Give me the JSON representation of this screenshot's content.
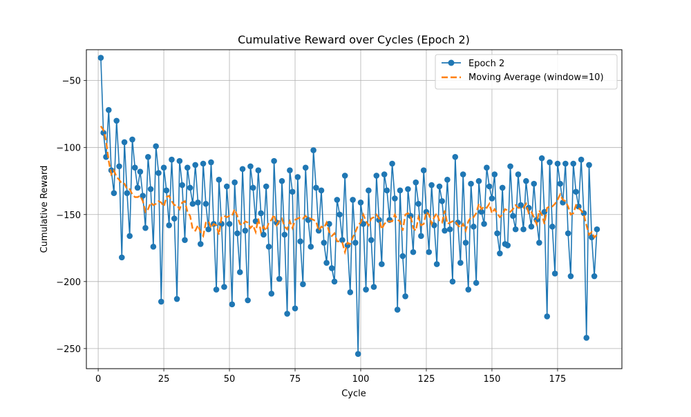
{
  "chart_data": {
    "type": "line",
    "title": "Cumulative Reward over Cycles (Epoch 2)",
    "xlabel": "Cycle",
    "ylabel": "Cumulative Reward",
    "xlim": [
      -4.5,
      199.5
    ],
    "ylim": [
      -265,
      -27
    ],
    "xticks": [
      0,
      25,
      50,
      75,
      100,
      125,
      150,
      175
    ],
    "yticks": [
      -250,
      -200,
      -150,
      -100,
      -50
    ],
    "grid": true,
    "legend_position": "top-right",
    "series": [
      {
        "name": "Epoch 2",
        "color": "#1f77b4",
        "style": "solid-line-circle-markers",
        "values": [
          -33,
          -89,
          -107,
          -72,
          -117,
          -134,
          -80,
          -114,
          -182,
          -96,
          -134,
          -166,
          -94,
          -115,
          -130,
          -118,
          -136,
          -160,
          -107,
          -131,
          -174,
          -99,
          -119,
          -215,
          -115,
          -132,
          -158,
          -109,
          -153,
          -213,
          -110,
          -128,
          -169,
          -115,
          -130,
          -142,
          -113,
          -141,
          -172,
          -112,
          -142,
          -161,
          -111,
          -157,
          -206,
          -124,
          -157,
          -204,
          -129,
          -157,
          -217,
          -126,
          -164,
          -193,
          -116,
          -162,
          -214,
          -114,
          -130,
          -155,
          -117,
          -149,
          -165,
          -129,
          -174,
          -209,
          -110,
          -156,
          -198,
          -125,
          -165,
          -224,
          -117,
          -133,
          -220,
          -122,
          -170,
          -202,
          -115,
          -154,
          -174,
          -102,
          -130,
          -162,
          -132,
          -171,
          -186,
          -157,
          -190,
          -200,
          -139,
          -150,
          -169,
          -121,
          -173,
          -208,
          -139,
          -171,
          -254,
          -141,
          -157,
          -206,
          -132,
          -169,
          -204,
          -121,
          -154,
          -187,
          -120,
          -132,
          -154,
          -112,
          -138,
          -221,
          -132,
          -181,
          -211,
          -131,
          -151,
          -178,
          -126,
          -142,
          -166,
          -117,
          -148,
          -178,
          -128,
          -158,
          -187,
          -129,
          -140,
          -162,
          -124,
          -161,
          -200,
          -107,
          -156,
          -186,
          -120,
          -171,
          -206,
          -127,
          -159,
          -201,
          -125,
          -148,
          -157,
          -115,
          -129,
          -138,
          -120,
          -164,
          -179,
          -130,
          -172,
          -173,
          -114,
          -151,
          -161,
          -120,
          -143,
          -161,
          -125,
          -145,
          -159,
          -127,
          -154,
          -171,
          -108,
          -148,
          -226,
          -111,
          -159,
          -194,
          -112,
          -127,
          -141,
          -112,
          -164,
          -196,
          -112,
          -133,
          -144,
          -109,
          -149,
          -242,
          -113,
          -167,
          -196,
          -161
        ]
      },
      {
        "name": "Moving Average (window=10)",
        "color": "#ff7f0e",
        "style": "dashed-line",
        "values": [
          -84,
          -87,
          -95,
          -110,
          -120,
          -117,
          -122,
          -124,
          -127,
          -127,
          -131,
          -131,
          -135,
          -137,
          -137,
          -136,
          -140,
          -148,
          -146,
          -141,
          -143,
          -142,
          -140,
          -141,
          -144,
          -137,
          -136,
          -140,
          -143,
          -143,
          -146,
          -141,
          -140,
          -148,
          -151,
          -161,
          -162,
          -158,
          -163,
          -166,
          -156,
          -155,
          -160,
          -157,
          -158,
          -165,
          -152,
          -151,
          -152,
          -151,
          -151,
          -146,
          -151,
          -157,
          -158,
          -155,
          -156,
          -160,
          -158,
          -163,
          -153,
          -163,
          -159,
          -162,
          -156,
          -154,
          -150,
          -158,
          -155,
          -153,
          -159,
          -161,
          -155,
          -160,
          -154,
          -153,
          -152,
          -153,
          -151,
          -153,
          -153,
          -154,
          -155,
          -162,
          -159,
          -160,
          -156,
          -163,
          -166,
          -164,
          -170,
          -170,
          -171,
          -178,
          -171,
          -172,
          -167,
          -163,
          -158,
          -156,
          -150,
          -155,
          -158,
          -153,
          -152,
          -150,
          -153,
          -161,
          -157,
          -155,
          -155,
          -155,
          -150,
          -154,
          -155,
          -162,
          -150,
          -149,
          -151,
          -160,
          -162,
          -152,
          -158,
          -157,
          -148,
          -150,
          -157,
          -152,
          -149,
          -155,
          -156,
          -147,
          -157,
          -156,
          -155,
          -155,
          -158,
          -160,
          -157,
          -162,
          -155,
          -152,
          -152,
          -149,
          -142,
          -146,
          -144,
          -145,
          -142,
          -149,
          -146,
          -149,
          -152,
          -150,
          -146,
          -147,
          -148,
          -146,
          -143,
          -145,
          -145,
          -145,
          -142,
          -149,
          -148,
          -152,
          -157,
          -147,
          -150,
          -157,
          -145,
          -144,
          -144,
          -142,
          -139,
          -135,
          -139,
          -140,
          -144,
          -150,
          -149,
          -143,
          -145,
          -147,
          -150,
          -158,
          -165,
          -163,
          -167,
          -165
        ]
      }
    ]
  }
}
